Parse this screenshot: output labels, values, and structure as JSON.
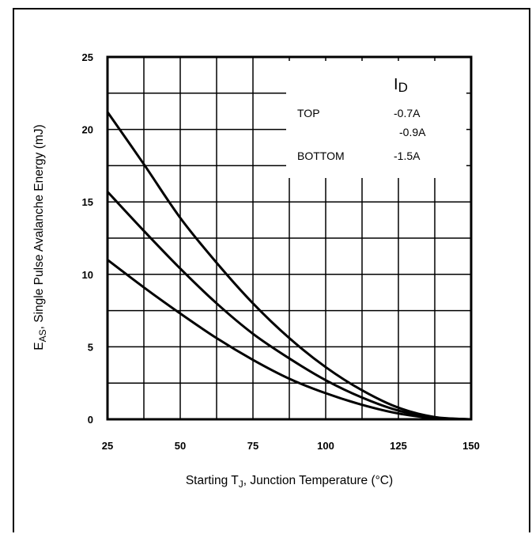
{
  "chart_data": {
    "type": "line",
    "xlabel": {
      "main": "Starting T",
      "sub": "J",
      "rest": ", Junction Temperature (°C)"
    },
    "ylabel": {
      "main": "E",
      "sub": "AS",
      "rest": ", Single Pulse Avalanche Energy (mJ)"
    },
    "xlim": [
      25,
      150
    ],
    "ylim": [
      0,
      25
    ],
    "x_ticks": [
      25,
      50,
      75,
      100,
      125,
      150
    ],
    "y_ticks": [
      0,
      5,
      10,
      15,
      20,
      25
    ],
    "grid": true,
    "legend": {
      "header": {
        "main": "I",
        "sub": "D"
      },
      "placement": "top-right",
      "rows": [
        {
          "label": "TOP",
          "value": "-0.7A"
        },
        {
          "label": "",
          "value": "-0.9A"
        },
        {
          "label": "BOTTOM",
          "value": "-1.5A"
        }
      ]
    },
    "series": [
      {
        "name": "-0.7A",
        "x": [
          25,
          37.5,
          50,
          62.5,
          75,
          87.5,
          100,
          112.5,
          125,
          137.5,
          150
        ],
        "y": [
          21.2,
          17.6,
          13.9,
          10.8,
          8.0,
          5.6,
          3.6,
          2.0,
          0.8,
          0.15,
          0
        ]
      },
      {
        "name": "-0.9A",
        "x": [
          25,
          37.5,
          50,
          62.5,
          75,
          87.5,
          100,
          112.5,
          125,
          137.5,
          150
        ],
        "y": [
          15.7,
          13.0,
          10.4,
          8.0,
          5.9,
          4.2,
          2.7,
          1.5,
          0.6,
          0.12,
          0
        ]
      },
      {
        "name": "-1.5A",
        "x": [
          25,
          37.5,
          50,
          62.5,
          75,
          87.5,
          100,
          112.5,
          125,
          137.5,
          150
        ],
        "y": [
          11.0,
          9.1,
          7.3,
          5.6,
          4.1,
          2.8,
          1.8,
          1.0,
          0.4,
          0.08,
          0
        ]
      }
    ]
  }
}
